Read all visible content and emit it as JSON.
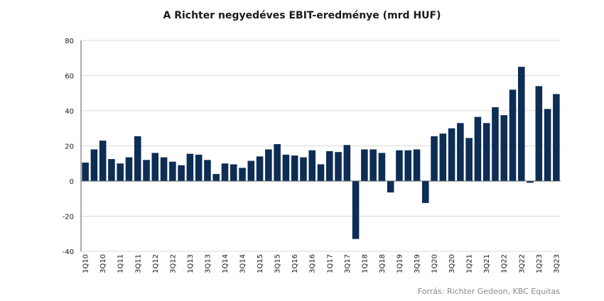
{
  "chart_data": {
    "type": "bar",
    "title": "A Richter negyedéves  EBIT-eredménye (mrd HUF)",
    "source": "Forrás: Richter Gedeon, KBC Equitas",
    "xlabel": "",
    "ylabel": "",
    "ylim": [
      -40,
      80
    ],
    "yticks": [
      -40,
      -20,
      0,
      20,
      40,
      60,
      80
    ],
    "grid": true,
    "legend": "none",
    "bar_color": "#0d2d55",
    "categories": [
      "1Q10",
      "2Q10",
      "3Q10",
      "4Q10",
      "1Q11",
      "2Q11",
      "3Q11",
      "4Q11",
      "1Q12",
      "2Q12",
      "3Q12",
      "4Q12",
      "1Q13",
      "2Q13",
      "3Q13",
      "4Q13",
      "1Q14",
      "2Q14",
      "3Q14",
      "4Q14",
      "1Q15",
      "2Q15",
      "3Q15",
      "4Q15",
      "1Q16",
      "2Q16",
      "3Q16",
      "4Q16",
      "1Q17",
      "2Q17",
      "3Q17",
      "4Q17",
      "1Q18",
      "2Q18",
      "3Q18",
      "4Q18",
      "1Q19",
      "2Q19",
      "3Q19",
      "4Q19",
      "1Q20",
      "2Q20",
      "3Q20",
      "4Q20",
      "1Q21",
      "2Q21",
      "3Q21",
      "4Q21",
      "1Q22",
      "2Q22",
      "3Q22",
      "4Q22",
      "1Q23",
      "2Q23",
      "3Q23"
    ],
    "tick_labels": [
      "1Q10",
      "",
      "3Q10",
      "",
      "1Q11",
      "",
      "3Q11",
      "",
      "1Q12",
      "",
      "3Q12",
      "",
      "1Q13",
      "",
      "3Q13",
      "",
      "1Q14",
      "",
      "3Q14",
      "",
      "1Q15",
      "",
      "3Q15",
      "",
      "1Q16",
      "",
      "3Q16",
      "",
      "1Q17",
      "",
      "3Q17",
      "",
      "1Q18",
      "",
      "3Q18",
      "",
      "1Q19",
      "",
      "3Q19",
      "",
      "1Q20",
      "",
      "3Q20",
      "",
      "1Q21",
      "",
      "3Q21",
      "",
      "1Q22",
      "",
      "3Q22",
      "",
      "1Q23",
      "",
      "3Q23"
    ],
    "values": [
      10.5,
      18,
      23,
      12.5,
      10,
      13.5,
      25.5,
      12,
      16,
      13.5,
      11,
      9,
      15.5,
      15,
      12,
      4,
      10,
      9.5,
      7.5,
      11.5,
      14,
      18,
      21,
      15,
      14.5,
      13.5,
      17.5,
      9.5,
      17,
      16.5,
      20.5,
      -33,
      18,
      18,
      16,
      -6.5,
      17.5,
      17.5,
      18,
      -12.5,
      25.5,
      27,
      30,
      33,
      24.5,
      36.5,
      33,
      42,
      37.5,
      52,
      65,
      -1,
      54,
      41,
      49.5
    ]
  }
}
